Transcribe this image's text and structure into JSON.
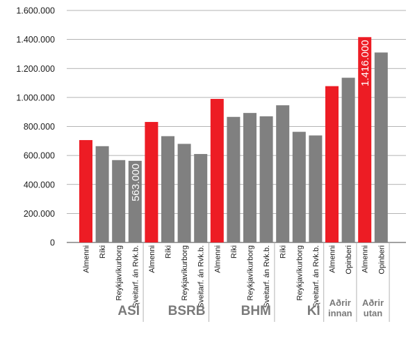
{
  "chart_data": {
    "type": "bar",
    "title": "",
    "xlabel": "",
    "ylabel": "",
    "ylim": [
      0,
      1600000
    ],
    "yticks": [
      0,
      200000,
      400000,
      600000,
      800000,
      1000000,
      1200000,
      1400000,
      1600000
    ],
    "ytick_labels": [
      "0",
      "200.000",
      "400.000",
      "600.000",
      "800.000",
      "1.000.000",
      "1.200.000",
      "1.400.000",
      "1.600.000"
    ],
    "grid": true,
    "colors": {
      "highlight": "#ed1c24",
      "default": "#808080"
    },
    "groups": [
      {
        "label": "ASÍ",
        "bars": [
          {
            "category": "Almenni",
            "value": 706000,
            "highlight": true
          },
          {
            "category": "Ríki",
            "value": 664000,
            "highlight": false
          },
          {
            "category": "Reykjavíkurborg",
            "value": 568000,
            "highlight": false
          },
          {
            "category": "Sveitarf. án Rvk.b.",
            "value": 563000,
            "highlight": false,
            "data_label": "563.000"
          }
        ]
      },
      {
        "label": "BSRB",
        "bars": [
          {
            "category": "Almenni",
            "value": 831000,
            "highlight": true
          },
          {
            "category": "Ríki",
            "value": 733000,
            "highlight": false
          },
          {
            "category": "Reykjavíkurborg",
            "value": 680000,
            "highlight": false
          },
          {
            "category": "Sveitarf. án Rvk.b.",
            "value": 610000,
            "highlight": false
          }
        ]
      },
      {
        "label": "BHM",
        "bars": [
          {
            "category": "Almenni",
            "value": 990000,
            "highlight": true
          },
          {
            "category": "Ríki",
            "value": 866000,
            "highlight": false
          },
          {
            "category": "Reykjavíkurborg",
            "value": 893000,
            "highlight": false
          },
          {
            "category": "Sveitarf. án Rvk.b.",
            "value": 870000,
            "highlight": false
          }
        ]
      },
      {
        "label": "KÍ",
        "bars": [
          {
            "category": "Ríki",
            "value": 946000,
            "highlight": false
          },
          {
            "category": "Reykjavíkurborg",
            "value": 763000,
            "highlight": false
          },
          {
            "category": "Sveitarf. án Rvk.b.",
            "value": 738000,
            "highlight": false
          }
        ]
      },
      {
        "label": "Aðrir innan",
        "bars": [
          {
            "category": "Almenni",
            "value": 1078000,
            "highlight": true
          },
          {
            "category": "Opinberi",
            "value": 1136000,
            "highlight": false
          }
        ]
      },
      {
        "label": "Aðrir utan",
        "bars": [
          {
            "category": "Almenni",
            "value": 1416000,
            "highlight": true,
            "data_label": "1.416.000"
          },
          {
            "category": "Opinberi",
            "value": 1310000,
            "highlight": false
          }
        ]
      }
    ]
  }
}
